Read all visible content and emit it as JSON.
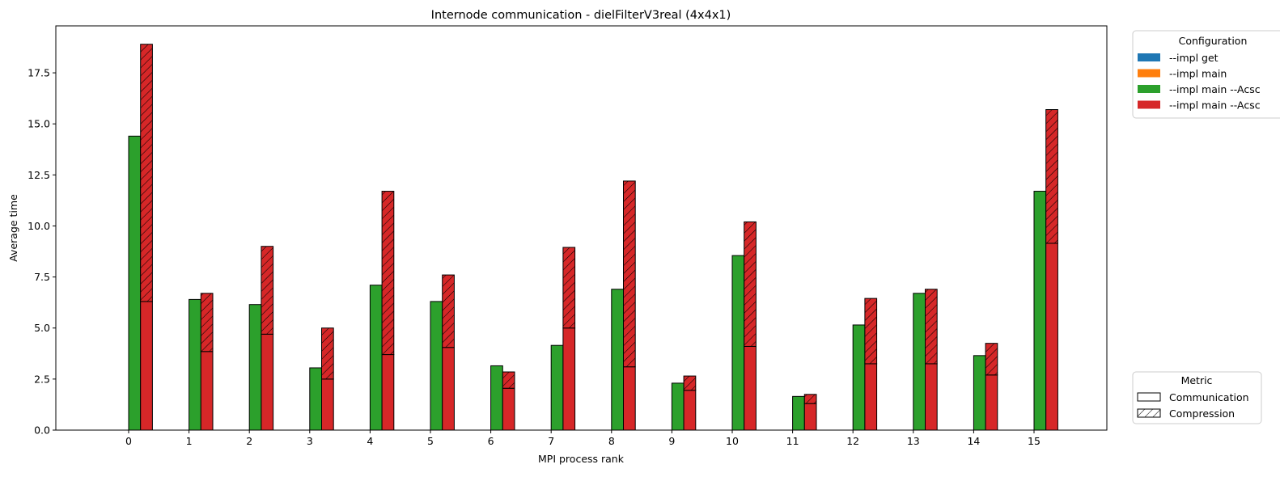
{
  "chart_data": {
    "type": "bar",
    "stacked": true,
    "title": "Internode communication - dielFilterV3real (4x4x1)",
    "xlabel": "MPI process rank",
    "ylabel": "Average time",
    "ylim": [
      0,
      19.8
    ],
    "yticks": [
      "0.0",
      "2.5",
      "5.0",
      "7.5",
      "10.0",
      "12.5",
      "15.0",
      "17.5"
    ],
    "categories": [
      "0",
      "1",
      "2",
      "3",
      "4",
      "5",
      "6",
      "7",
      "8",
      "9",
      "10",
      "11",
      "12",
      "13",
      "14",
      "15"
    ],
    "grid": false,
    "series": [
      {
        "name": "--impl get",
        "color": "#1f77b4",
        "communication": [
          0,
          0,
          0,
          0,
          0,
          0,
          0,
          0,
          0,
          0,
          0,
          0,
          0,
          0,
          0,
          0
        ],
        "compression": [
          0,
          0,
          0,
          0,
          0,
          0,
          0,
          0,
          0,
          0,
          0,
          0,
          0,
          0,
          0,
          0
        ]
      },
      {
        "name": "--impl main",
        "color": "#ff7f0e",
        "communication": [
          0,
          0,
          0,
          0,
          0,
          0,
          0,
          0,
          0,
          0,
          0,
          0,
          0,
          0,
          0,
          0
        ],
        "compression": [
          0,
          0,
          0,
          0,
          0,
          0,
          0,
          0,
          0,
          0,
          0,
          0,
          0,
          0,
          0,
          0
        ]
      },
      {
        "name": "--impl main --Acsc",
        "color": "#2ca02c",
        "communication": [
          14.4,
          6.4,
          6.15,
          3.05,
          7.1,
          6.3,
          3.15,
          4.15,
          6.9,
          2.3,
          8.55,
          1.65,
          5.15,
          6.7,
          3.65,
          11.7
        ],
        "compression": [
          0,
          0,
          0,
          0,
          0,
          0,
          0,
          0,
          0,
          0,
          0,
          0,
          0,
          0,
          0,
          0
        ]
      },
      {
        "name": "--impl main --Acsc",
        "color": "#d62728",
        "communication": [
          6.3,
          3.85,
          4.7,
          2.5,
          3.7,
          4.05,
          2.05,
          5.0,
          3.1,
          1.95,
          4.1,
          1.3,
          3.25,
          3.25,
          2.7,
          9.15
        ],
        "compression": [
          12.6,
          2.85,
          4.3,
          2.5,
          8.0,
          3.55,
          0.8,
          3.95,
          9.1,
          0.7,
          6.1,
          0.45,
          3.2,
          3.65,
          1.55,
          6.55
        ]
      }
    ],
    "legend_config": {
      "title": "Configuration",
      "placement": "upper-right-outside",
      "entries": [
        "--impl get",
        "--impl main",
        "--impl main --Acsc",
        "--impl main --Acsc"
      ]
    },
    "legend_metric": {
      "title": "Metric",
      "placement": "lower-right-outside",
      "entries": [
        "Communication",
        "Compression"
      ]
    }
  }
}
